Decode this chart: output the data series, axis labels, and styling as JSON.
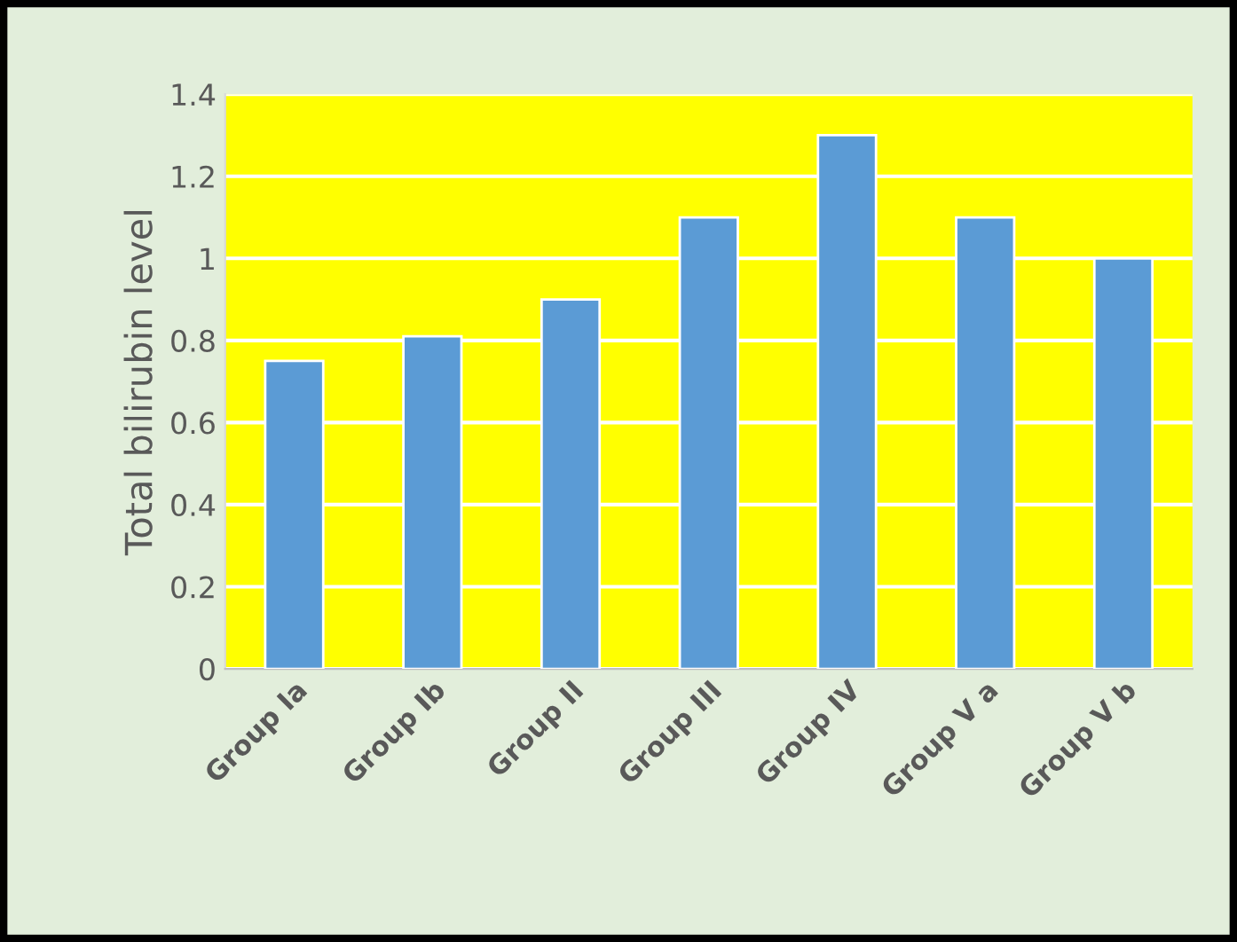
{
  "chart_data": {
    "type": "bar",
    "ylabel": "Total bilirubin level",
    "categories": [
      "Group Ia",
      "Group Ib",
      "Group II",
      "Group III",
      "Group IV",
      "Group V a",
      "Group V b"
    ],
    "values": [
      0.75,
      0.81,
      0.9,
      1.1,
      1.3,
      1.1,
      1.0
    ],
    "color": "#5b9bd5",
    "ylim": [
      0,
      1.4
    ],
    "yticks": [
      {
        "value": 0,
        "label": "0"
      },
      {
        "value": 0.2,
        "label": "0.2"
      },
      {
        "value": 0.4,
        "label": "0.4"
      },
      {
        "value": 0.6,
        "label": "0.6"
      },
      {
        "value": 0.8,
        "label": "0.8"
      },
      {
        "value": 1,
        "label": "1"
      },
      {
        "value": 1.2,
        "label": "1.2"
      },
      {
        "value": 1.4,
        "label": "1.4"
      }
    ],
    "grid": "y"
  }
}
